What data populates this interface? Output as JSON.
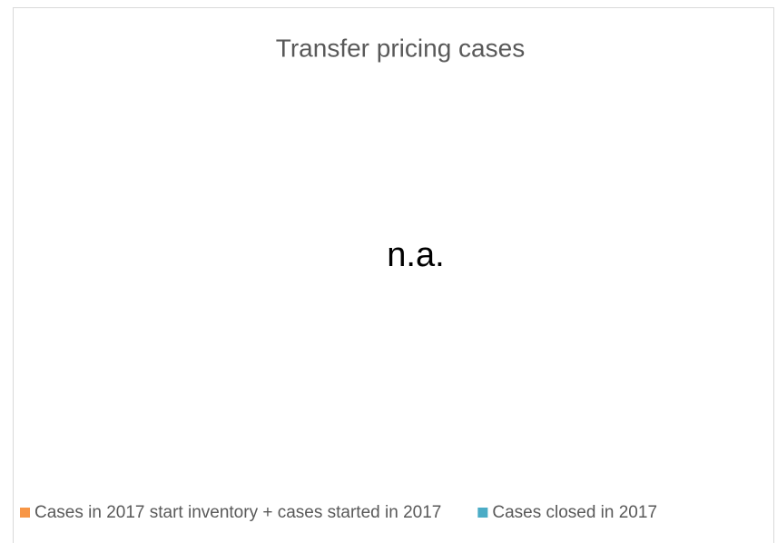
{
  "chart_data": {
    "type": "bar",
    "title": "Transfer pricing cases",
    "annotation": "n.a.",
    "series": [
      {
        "name": "Cases in 2017 start inventory + cases started in 2017",
        "color": "#f79646"
      },
      {
        "name": "Cases closed in 2017",
        "color": "#4bacc6"
      }
    ],
    "legend": "bottom"
  }
}
